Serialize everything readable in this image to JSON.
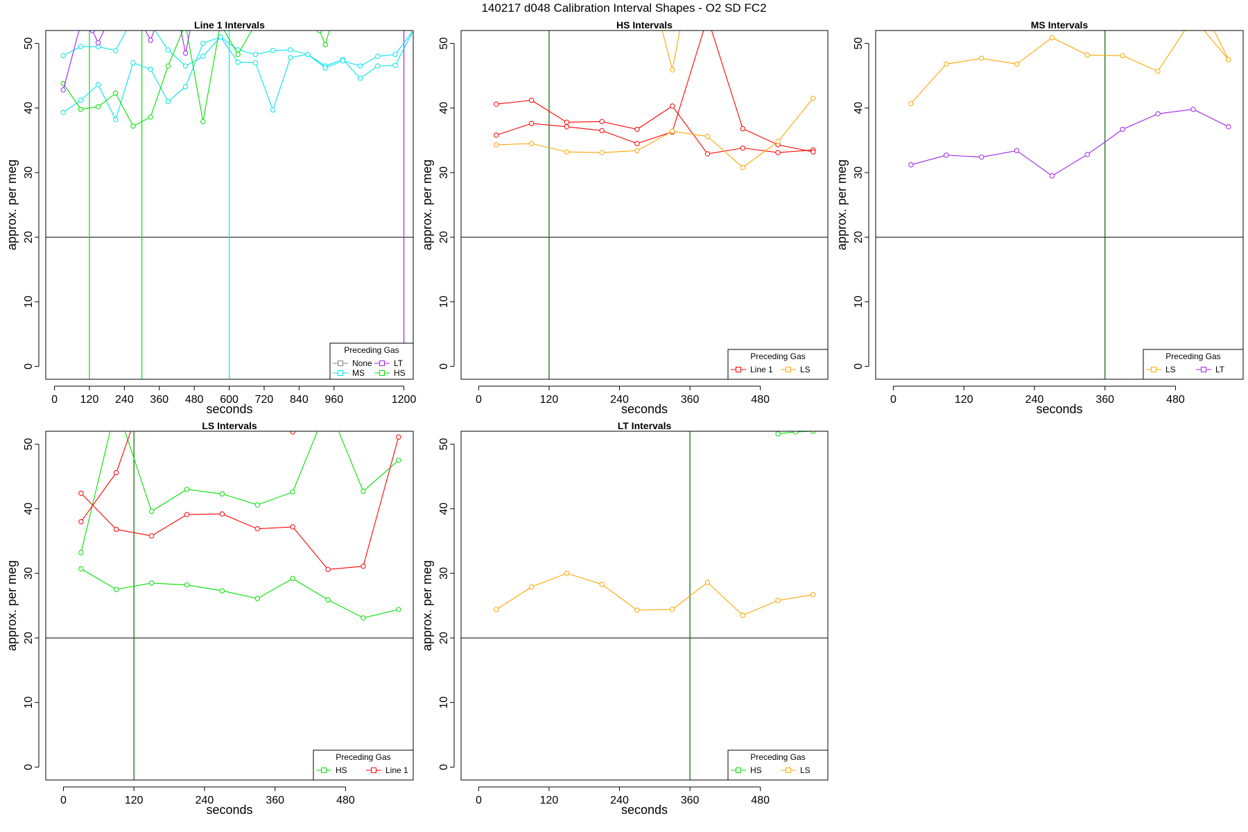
{
  "title": "140217   d048   Calibration Interval Shapes - O2 SD FC2",
  "colors": {
    "None": "#808080",
    "MS": "#00e5ee",
    "LT": "#a020f0",
    "HS": "#00e000",
    "Line 1": "#ff0000",
    "LS": "#ffa500",
    "ref_line": "#000000",
    "vline_default": "#006400"
  },
  "chart_data": [
    {
      "type": "line",
      "title": "Line 1 Intervals",
      "xlabel": "seconds",
      "ylabel": "approx. per meg",
      "xlim": [
        -30,
        1232
      ],
      "ylim": [
        -2,
        52
      ],
      "xticks": [
        0,
        120,
        240,
        360,
        480,
        600,
        720,
        840,
        960,
        1200
      ],
      "yticks": [
        0,
        10,
        20,
        30,
        40,
        50
      ],
      "hline": 20,
      "vlines": [
        {
          "x": 120,
          "color_key": "HS"
        },
        {
          "x": 300,
          "color_key": "HS"
        },
        {
          "x": 600,
          "color_key": "MS"
        },
        {
          "x": 1200,
          "color_key": "LT"
        }
      ],
      "legend": {
        "title": "Preceding Gas",
        "position": "bottom-right",
        "columns": 2,
        "entries": [
          "None",
          "LT",
          "MS",
          "HS"
        ]
      },
      "series": [
        {
          "name": "MS",
          "color_key": "MS",
          "x": [
            30,
            90,
            150,
            210,
            270,
            330,
            390,
            450,
            510,
            570,
            630,
            690,
            750,
            810,
            870,
            930,
            990,
            1050,
            1110,
            1170,
            1232
          ],
          "y": [
            39.3,
            41.2,
            43.6,
            38.2,
            47.0,
            46.0,
            41.0,
            43.3,
            50.0,
            51.0,
            47.1,
            47.0,
            39.7,
            47.8,
            48.3,
            46.5,
            47.5,
            44.6,
            46.5,
            46.6,
            52
          ]
        },
        {
          "name": "MS",
          "color_key": "MS",
          "x": [
            30,
            90,
            150,
            210,
            270,
            330,
            390,
            450,
            510,
            570,
            630,
            690,
            750,
            810,
            870,
            930,
            990,
            1050,
            1110,
            1170,
            1232
          ],
          "y": [
            48.1,
            49.5,
            49.5,
            48.9,
            54,
            53,
            49.0,
            46.5,
            48.0,
            51.0,
            49.0,
            48.3,
            48.9,
            49.0,
            48.3,
            46.2,
            47.3,
            46.5,
            48.0,
            48.3,
            52
          ]
        },
        {
          "name": "HS",
          "color_key": "HS",
          "x": [
            30,
            90,
            150,
            210,
            270,
            330,
            390,
            450,
            510,
            570,
            630,
            690
          ],
          "y": [
            43.8,
            39.8,
            40.2,
            42.3,
            37.2,
            38.6,
            46.5,
            53,
            37.9,
            53,
            48.3,
            53
          ]
        },
        {
          "name": "HS",
          "color_key": "HS",
          "x": [
            850,
            910,
            930,
            950
          ],
          "y": [
            53,
            52,
            49.8,
            53
          ]
        },
        {
          "name": "LT",
          "color_key": "LT",
          "x": [
            30,
            90,
            130,
            150,
            180
          ],
          "y": [
            42.8,
            53,
            52,
            50.1,
            53
          ]
        },
        {
          "name": "LT",
          "color_key": "LT",
          "x": [
            300,
            330,
            350
          ],
          "y": [
            53,
            50.5,
            53
          ]
        },
        {
          "name": "LT",
          "color_key": "LT",
          "x": [
            430,
            450,
            470
          ],
          "y": [
            53,
            48.5,
            53
          ]
        }
      ]
    },
    {
      "type": "line",
      "title": "HS Intervals",
      "xlabel": "seconds",
      "ylabel": "approx. per meg",
      "xlim": [
        -30,
        595
      ],
      "ylim": [
        -2,
        52
      ],
      "xticks": [
        0,
        120,
        240,
        360,
        480
      ],
      "yticks": [
        0,
        10,
        20,
        30,
        40,
        50
      ],
      "hline": 20,
      "vlines": [
        {
          "x": 120,
          "color_key": "vline_default"
        }
      ],
      "legend": {
        "title": "Preceding Gas",
        "position": "bottom-right",
        "columns": 2,
        "entries": [
          "Line 1",
          "LS"
        ]
      },
      "series": [
        {
          "name": "Line 1",
          "color_key": "Line 1",
          "x": [
            30,
            90,
            150,
            210,
            270,
            330,
            390,
            450,
            510,
            570
          ],
          "y": [
            40.6,
            41.2,
            37.8,
            37.9,
            36.7,
            40.3,
            32.9,
            33.8,
            33.1,
            33.5
          ]
        },
        {
          "name": "Line 1",
          "color_key": "Line 1",
          "x": [
            30,
            90,
            150,
            210,
            270,
            330,
            390,
            450,
            510,
            570
          ],
          "y": [
            35.8,
            37.6,
            37.1,
            36.5,
            34.5,
            36.3,
            54,
            36.8,
            34.3,
            33.2
          ]
        },
        {
          "name": "LS",
          "color_key": "LS",
          "x": [
            30,
            90,
            150,
            210,
            270,
            330,
            390,
            450,
            510,
            570
          ],
          "y": [
            34.3,
            34.5,
            33.2,
            33.1,
            33.4,
            36.4,
            35.6,
            30.8,
            34.8,
            41.5
          ]
        },
        {
          "name": "LS",
          "color_key": "LS",
          "x": [
            310,
            330,
            345
          ],
          "y": [
            53,
            45.9,
            53
          ]
        }
      ]
    },
    {
      "type": "line",
      "title": "MS Intervals",
      "xlabel": "seconds",
      "ylabel": "approx. per meg",
      "xlim": [
        -30,
        595
      ],
      "ylim": [
        -2,
        52
      ],
      "xticks": [
        0,
        120,
        240,
        360,
        480
      ],
      "yticks": [
        0,
        10,
        20,
        30,
        40,
        50
      ],
      "hline": 20,
      "vlines": [
        {
          "x": 360,
          "color_key": "vline_default"
        }
      ],
      "legend": {
        "title": "Preceding Gas",
        "position": "bottom-right",
        "columns": 2,
        "entries": [
          "LS",
          "LT"
        ]
      },
      "series": [
        {
          "name": "LS",
          "color_key": "LS",
          "x": [
            30,
            90,
            150,
            210,
            270,
            330,
            390,
            450,
            510,
            570
          ],
          "y": [
            40.7,
            46.8,
            47.7,
            46.8,
            50.9,
            48.2,
            48.1,
            45.7,
            54,
            47.5
          ]
        },
        {
          "name": "LS",
          "color_key": "LS",
          "x": [
            540,
            570
          ],
          "y": [
            53,
            47.5
          ]
        },
        {
          "name": "LT",
          "color_key": "LT",
          "x": [
            30,
            90,
            150,
            210,
            270,
            330,
            390,
            450,
            510,
            570
          ],
          "y": [
            31.2,
            32.7,
            32.4,
            33.4,
            29.5,
            32.8,
            36.7,
            39.1,
            39.8,
            37.1
          ]
        }
      ]
    },
    {
      "type": "line",
      "title": "LS Intervals",
      "xlabel": "seconds",
      "ylabel": "approx. per meg",
      "xlim": [
        -30,
        595
      ],
      "ylim": [
        -2,
        52
      ],
      "xticks": [
        0,
        120,
        240,
        360,
        480
      ],
      "yticks": [
        0,
        10,
        20,
        30,
        40,
        50
      ],
      "hline": 20,
      "vlines": [
        {
          "x": 120,
          "color_key": "vline_default"
        }
      ],
      "legend": {
        "title": "Preceding Gas",
        "position": "bottom-right",
        "columns": 2,
        "entries": [
          "HS",
          "Line 1"
        ]
      },
      "series": [
        {
          "name": "HS",
          "color_key": "HS",
          "x": [
            30,
            90,
            150,
            210,
            270,
            330,
            390,
            450,
            510,
            570
          ],
          "y": [
            33.2,
            56,
            39.6,
            43.0,
            42.3,
            40.6,
            42.6,
            56,
            42.7,
            47.5
          ]
        },
        {
          "name": "HS",
          "color_key": "HS",
          "x": [
            30,
            90,
            150,
            210,
            270,
            330,
            390,
            450,
            510,
            570
          ],
          "y": [
            30.7,
            27.5,
            28.5,
            28.2,
            27.3,
            26.1,
            29.2,
            25.9,
            23.1,
            24.4
          ]
        },
        {
          "name": "Line 1",
          "color_key": "Line 1",
          "x": [
            30,
            90,
            150,
            210,
            270,
            330,
            390,
            450,
            510,
            570
          ],
          "y": [
            42.4,
            36.8,
            35.8,
            39.1,
            39.2,
            36.9,
            37.2,
            30.6,
            31.1,
            51.1
          ]
        },
        {
          "name": "Line 1",
          "color_key": "Line 1",
          "x": [
            30,
            90,
            130
          ],
          "y": [
            38.0,
            45.6,
            56
          ]
        },
        {
          "name": "Line 1",
          "color_key": "Line 1",
          "x": [
            380,
            390,
            400
          ],
          "y": [
            53,
            51.9,
            53
          ]
        }
      ]
    },
    {
      "type": "line",
      "title": "LT Intervals",
      "xlabel": "seconds",
      "ylabel": "approx. per meg",
      "xlim": [
        -30,
        595
      ],
      "ylim": [
        -2,
        52
      ],
      "xticks": [
        0,
        120,
        240,
        360,
        480
      ],
      "yticks": [
        0,
        10,
        20,
        30,
        40,
        50
      ],
      "hline": 20,
      "vlines": [
        {
          "x": 360,
          "color_key": "vline_default"
        }
      ],
      "legend": {
        "title": "Preceding Gas",
        "position": "bottom-right",
        "columns": 2,
        "entries": [
          "HS",
          "LS"
        ]
      },
      "series": [
        {
          "name": "LS",
          "color_key": "LS",
          "x": [
            30,
            90,
            150,
            210,
            270,
            330,
            390,
            450,
            510,
            570
          ],
          "y": [
            24.4,
            27.9,
            30.0,
            28.3,
            24.3,
            24.4,
            28.6,
            23.5,
            25.8,
            26.7
          ]
        },
        {
          "name": "HS",
          "color_key": "HS",
          "x": [
            510,
            540,
            570
          ],
          "y": [
            51.6,
            51.9,
            52
          ]
        }
      ]
    }
  ]
}
